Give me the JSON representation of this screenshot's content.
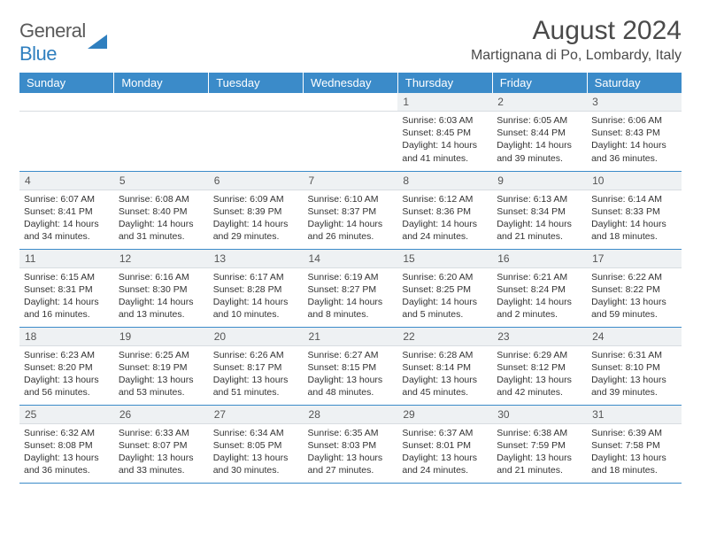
{
  "brand": {
    "word1": "General",
    "word2": "Blue"
  },
  "title": "August 2024",
  "location": "Martignana di Po, Lombardy, Italy",
  "colors": {
    "header_bg": "#3b8bc9",
    "header_text": "#ffffff",
    "daynum_bg": "#eef1f3",
    "row_border": "#3b8bc9",
    "brand_gray": "#5a5a5a",
    "brand_blue": "#2f7fbf"
  },
  "weekdays": [
    "Sunday",
    "Monday",
    "Tuesday",
    "Wednesday",
    "Thursday",
    "Friday",
    "Saturday"
  ],
  "weeks": [
    [
      null,
      null,
      null,
      null,
      {
        "n": "1",
        "sr": "6:03 AM",
        "ss": "8:45 PM",
        "dl": "14 hours and 41 minutes."
      },
      {
        "n": "2",
        "sr": "6:05 AM",
        "ss": "8:44 PM",
        "dl": "14 hours and 39 minutes."
      },
      {
        "n": "3",
        "sr": "6:06 AM",
        "ss": "8:43 PM",
        "dl": "14 hours and 36 minutes."
      }
    ],
    [
      {
        "n": "4",
        "sr": "6:07 AM",
        "ss": "8:41 PM",
        "dl": "14 hours and 34 minutes."
      },
      {
        "n": "5",
        "sr": "6:08 AM",
        "ss": "8:40 PM",
        "dl": "14 hours and 31 minutes."
      },
      {
        "n": "6",
        "sr": "6:09 AM",
        "ss": "8:39 PM",
        "dl": "14 hours and 29 minutes."
      },
      {
        "n": "7",
        "sr": "6:10 AM",
        "ss": "8:37 PM",
        "dl": "14 hours and 26 minutes."
      },
      {
        "n": "8",
        "sr": "6:12 AM",
        "ss": "8:36 PM",
        "dl": "14 hours and 24 minutes."
      },
      {
        "n": "9",
        "sr": "6:13 AM",
        "ss": "8:34 PM",
        "dl": "14 hours and 21 minutes."
      },
      {
        "n": "10",
        "sr": "6:14 AM",
        "ss": "8:33 PM",
        "dl": "14 hours and 18 minutes."
      }
    ],
    [
      {
        "n": "11",
        "sr": "6:15 AM",
        "ss": "8:31 PM",
        "dl": "14 hours and 16 minutes."
      },
      {
        "n": "12",
        "sr": "6:16 AM",
        "ss": "8:30 PM",
        "dl": "14 hours and 13 minutes."
      },
      {
        "n": "13",
        "sr": "6:17 AM",
        "ss": "8:28 PM",
        "dl": "14 hours and 10 minutes."
      },
      {
        "n": "14",
        "sr": "6:19 AM",
        "ss": "8:27 PM",
        "dl": "14 hours and 8 minutes."
      },
      {
        "n": "15",
        "sr": "6:20 AM",
        "ss": "8:25 PM",
        "dl": "14 hours and 5 minutes."
      },
      {
        "n": "16",
        "sr": "6:21 AM",
        "ss": "8:24 PM",
        "dl": "14 hours and 2 minutes."
      },
      {
        "n": "17",
        "sr": "6:22 AM",
        "ss": "8:22 PM",
        "dl": "13 hours and 59 minutes."
      }
    ],
    [
      {
        "n": "18",
        "sr": "6:23 AM",
        "ss": "8:20 PM",
        "dl": "13 hours and 56 minutes."
      },
      {
        "n": "19",
        "sr": "6:25 AM",
        "ss": "8:19 PM",
        "dl": "13 hours and 53 minutes."
      },
      {
        "n": "20",
        "sr": "6:26 AM",
        "ss": "8:17 PM",
        "dl": "13 hours and 51 minutes."
      },
      {
        "n": "21",
        "sr": "6:27 AM",
        "ss": "8:15 PM",
        "dl": "13 hours and 48 minutes."
      },
      {
        "n": "22",
        "sr": "6:28 AM",
        "ss": "8:14 PM",
        "dl": "13 hours and 45 minutes."
      },
      {
        "n": "23",
        "sr": "6:29 AM",
        "ss": "8:12 PM",
        "dl": "13 hours and 42 minutes."
      },
      {
        "n": "24",
        "sr": "6:31 AM",
        "ss": "8:10 PM",
        "dl": "13 hours and 39 minutes."
      }
    ],
    [
      {
        "n": "25",
        "sr": "6:32 AM",
        "ss": "8:08 PM",
        "dl": "13 hours and 36 minutes."
      },
      {
        "n": "26",
        "sr": "6:33 AM",
        "ss": "8:07 PM",
        "dl": "13 hours and 33 minutes."
      },
      {
        "n": "27",
        "sr": "6:34 AM",
        "ss": "8:05 PM",
        "dl": "13 hours and 30 minutes."
      },
      {
        "n": "28",
        "sr": "6:35 AM",
        "ss": "8:03 PM",
        "dl": "13 hours and 27 minutes."
      },
      {
        "n": "29",
        "sr": "6:37 AM",
        "ss": "8:01 PM",
        "dl": "13 hours and 24 minutes."
      },
      {
        "n": "30",
        "sr": "6:38 AM",
        "ss": "7:59 PM",
        "dl": "13 hours and 21 minutes."
      },
      {
        "n": "31",
        "sr": "6:39 AM",
        "ss": "7:58 PM",
        "dl": "13 hours and 18 minutes."
      }
    ]
  ],
  "labels": {
    "sunrise": "Sunrise:",
    "sunset": "Sunset:",
    "daylight": "Daylight:"
  }
}
